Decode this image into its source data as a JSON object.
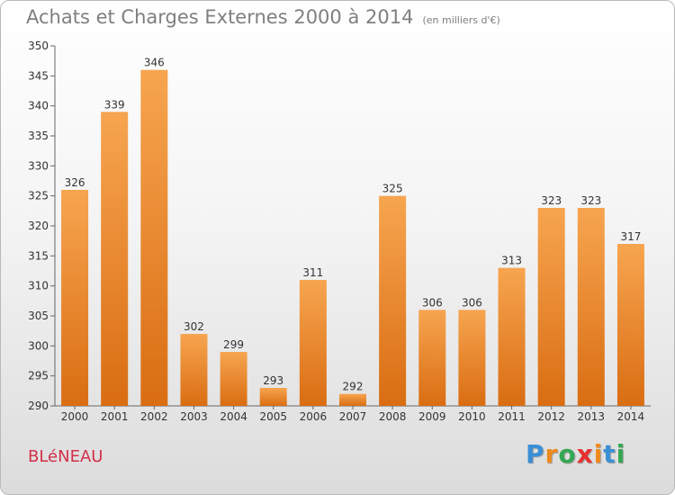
{
  "header": {
    "title": "Achats et Charges Externes 2000 à 2014",
    "unit": "(en milliers d'€)"
  },
  "footer": {
    "commune": "BLéNEAU",
    "brand": "Proxiti",
    "brand_colors": [
      "#3a8fd6",
      "#f08a1c",
      "#34a853",
      "#e8302f",
      "#f08a1c",
      "#3a8fd6",
      "#34a853"
    ]
  },
  "colors": {
    "bar_top": "#f7a550",
    "bar_bottom": "#d96d12",
    "axis": "#666666",
    "label": "#333333",
    "title": "#7f7f7f",
    "commune": "#d2304a"
  },
  "chart_data": {
    "type": "bar",
    "categories": [
      "2000",
      "2001",
      "2002",
      "2003",
      "2004",
      "2005",
      "2006",
      "2007",
      "2008",
      "2009",
      "2010",
      "2011",
      "2012",
      "2013",
      "2014"
    ],
    "values": [
      326,
      339,
      346,
      302,
      299,
      293,
      311,
      292,
      325,
      306,
      306,
      313,
      323,
      323,
      317
    ],
    "title": "Achats et Charges Externes 2000 à 2014",
    "ylim": [
      290,
      350
    ],
    "yticks": [
      290,
      295,
      300,
      305,
      310,
      315,
      320,
      325,
      330,
      335,
      340,
      345,
      350
    ],
    "grid": false,
    "legend": "none"
  }
}
